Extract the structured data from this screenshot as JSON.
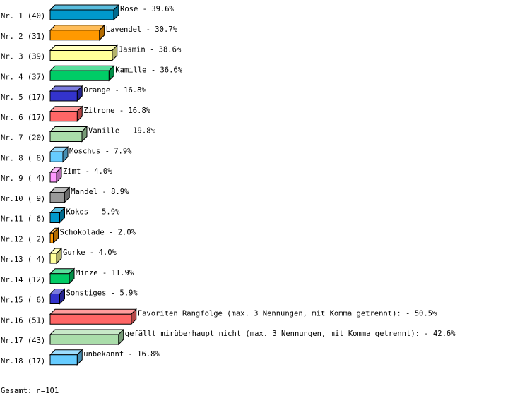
{
  "chart_data": {
    "type": "bar",
    "orientation": "horizontal",
    "style": "3d",
    "rows": [
      {
        "label": "Nr. 1 (40)",
        "name": "Rose",
        "count": 40,
        "percent": "39.6%",
        "color": "#0099cc"
      },
      {
        "label": "Nr. 2 (31)",
        "name": "Lavendel",
        "count": 31,
        "percent": "30.7%",
        "color": "#ff9900"
      },
      {
        "label": "Nr. 3 (39)",
        "name": "Jasmin",
        "count": 39,
        "percent": "38.6%",
        "color": "#ffff99"
      },
      {
        "label": "Nr. 4 (37)",
        "name": "Kamille",
        "count": 37,
        "percent": "36.6%",
        "color": "#00cc66"
      },
      {
        "label": "Nr. 5 (17)",
        "name": "Orange",
        "count": 17,
        "percent": "16.8%",
        "color": "#3333cc"
      },
      {
        "label": "Nr. 6 (17)",
        "name": "Zitrone",
        "count": 17,
        "percent": "16.8%",
        "color": "#ff6666"
      },
      {
        "label": "Nr. 7 (20)",
        "name": "Vanille",
        "count": 20,
        "percent": "19.8%",
        "color": "#aaddaa"
      },
      {
        "label": "Nr. 8 ( 8)",
        "name": "Moschus",
        "count": 8,
        "percent": "7.9%",
        "color": "#66ccff"
      },
      {
        "label": "Nr. 9 ( 4)",
        "name": "Zimt",
        "count": 4,
        "percent": "4.0%",
        "color": "#ff99ff"
      },
      {
        "label": "Nr.10 ( 9)",
        "name": "Mandel",
        "count": 9,
        "percent": "8.9%",
        "color": "#999999"
      },
      {
        "label": "Nr.11 ( 6)",
        "name": "Kokos",
        "count": 6,
        "percent": "5.9%",
        "color": "#0099cc"
      },
      {
        "label": "Nr.12 ( 2)",
        "name": "Schokolade",
        "count": 2,
        "percent": "2.0%",
        "color": "#ff9900"
      },
      {
        "label": "Nr.13 ( 4)",
        "name": "Gurke",
        "count": 4,
        "percent": "4.0%",
        "color": "#ffff99"
      },
      {
        "label": "Nr.14 (12)",
        "name": "Minze",
        "count": 12,
        "percent": "11.9%",
        "color": "#00cc66"
      },
      {
        "label": "Nr.15 ( 6)",
        "name": "Sonstiges",
        "count": 6,
        "percent": "5.9%",
        "color": "#3333cc"
      },
      {
        "label": "Nr.16 (51)",
        "name": "Favoriten Rangfolge (max. 3 Nennungen, mit Komma getrennt):",
        "count": 51,
        "percent": "50.5%",
        "color": "#ff6666"
      },
      {
        "label": "Nr.17 (43)",
        "name": "gefällt mirüberhaupt nicht (max. 3 Nennungen, mit Komma getrennt):",
        "count": 43,
        "percent": "42.6%",
        "color": "#aaddaa"
      },
      {
        "label": "Nr.18 (17)",
        "name": "unbekannt",
        "count": 17,
        "percent": "16.8%",
        "color": "#66ccff"
      }
    ],
    "total": "Gesamt: n=101"
  }
}
